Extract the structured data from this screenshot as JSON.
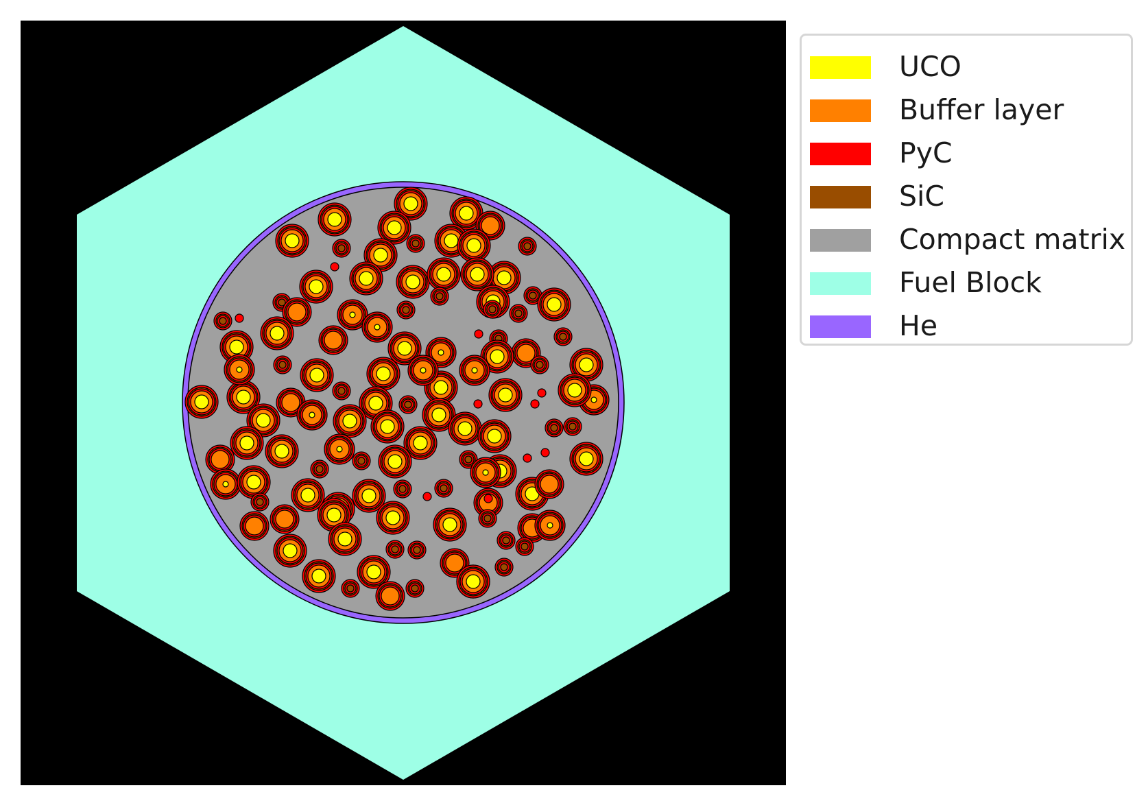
{
  "legend": {
    "items": [
      {
        "label": "UCO",
        "color": "#ffff00"
      },
      {
        "label": "Buffer layer",
        "color": "#ff8000"
      },
      {
        "label": "PyC",
        "color": "#ff0000"
      },
      {
        "label": "SiC",
        "color": "#994d00"
      },
      {
        "label": "Compact matrix",
        "color": "#a0a0a0"
      },
      {
        "label": "Fuel Block",
        "color": "#9effe6"
      },
      {
        "label": "He",
        "color": "#9966ff"
      }
    ]
  },
  "colors": {
    "background": "#000000",
    "fuel_block": "#9effe6",
    "he_gap": "#9966ff",
    "compact_matrix": "#a0a0a0",
    "uco": "#ffff00",
    "buffer": "#ff8000",
    "pyc": "#ff0000",
    "sic": "#994d00",
    "outline": "#000000"
  }
}
